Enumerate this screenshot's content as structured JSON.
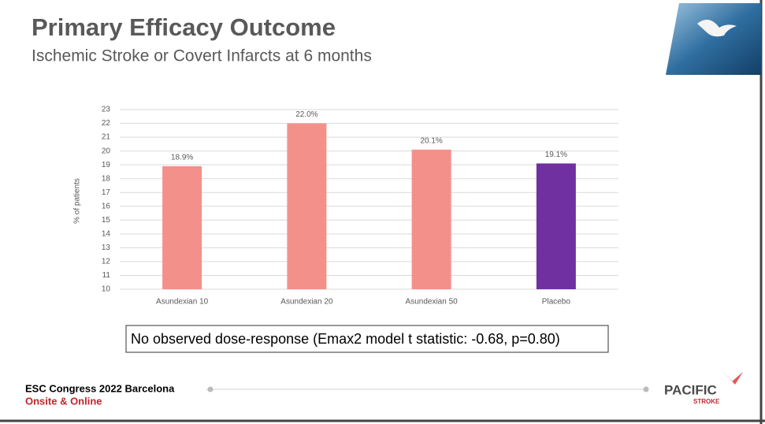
{
  "chart_data": {
    "type": "bar",
    "title": "Primary Efficacy Outcome",
    "subtitle": "Ischemic Stroke or Covert Infarcts at 6 months",
    "y_label": "% of patients",
    "categories": [
      "Asundexian 10",
      "Asundexian 20",
      "Asundexian 50",
      "Placebo"
    ],
    "values": [
      18.9,
      22.0,
      20.1,
      19.1
    ],
    "value_labels": [
      "18.9%",
      "22.0%",
      "20.1%",
      "19.1%"
    ],
    "colors": [
      "#f4908a",
      "#f4908a",
      "#f4908a",
      "#7030a0"
    ],
    "ylim": [
      10,
      23
    ],
    "yticks": [
      10,
      11,
      12,
      13,
      14,
      15,
      16,
      17,
      18,
      19,
      20,
      21,
      22,
      23
    ],
    "grid": true,
    "annotation": "No observed dose-response (Emax2 model t statistic: -0.68, p=0.80)"
  },
  "footer": {
    "event": "ESC Congress 2022 Barcelona",
    "mode": "Onsite & Online",
    "logo": "PACIFIC",
    "logo_sub": "STROKE"
  }
}
